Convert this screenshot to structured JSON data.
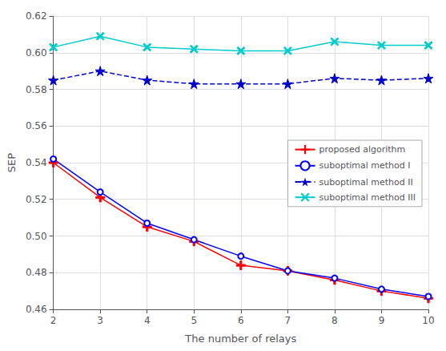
{
  "chart_data": {
    "type": "line",
    "xlabel": "The number of relays",
    "ylabel": "SEP",
    "x": [
      2,
      3,
      4,
      5,
      6,
      7,
      8,
      9,
      10
    ],
    "series": [
      {
        "name": "proposed algorithm",
        "color": "#ff0000",
        "marker": "plus",
        "line_style": "solid",
        "values": [
          0.54,
          0.521,
          0.505,
          0.497,
          0.484,
          0.481,
          0.476,
          0.47,
          0.466
        ]
      },
      {
        "name": "suboptimal method I",
        "color": "#0000ff",
        "marker": "circle",
        "line_style": "solid",
        "values": [
          0.542,
          0.524,
          0.507,
          0.498,
          0.489,
          0.481,
          0.477,
          0.471,
          0.467
        ]
      },
      {
        "name": "suboptimal method II",
        "color": "#0000cc",
        "marker": "star",
        "line_style": "dashed",
        "values": [
          0.585,
          0.59,
          0.585,
          0.583,
          0.583,
          0.583,
          0.586,
          0.585,
          0.586
        ]
      },
      {
        "name": "suboptimal method III",
        "color": "#00cccc",
        "marker": "x",
        "line_style": "solid",
        "values": [
          0.603,
          0.609,
          0.603,
          0.602,
          0.601,
          0.601,
          0.606,
          0.604,
          0.604
        ]
      }
    ],
    "xlim": [
      2,
      10
    ],
    "xticks": [
      2,
      3,
      4,
      5,
      6,
      7,
      8,
      9,
      10
    ],
    "ylim": [
      0.46,
      0.62
    ],
    "yticks": [
      0.46,
      0.48,
      {
        "value": 0.5,
        "label": "0.50"
      },
      0.52,
      0.54,
      0.56,
      0.58,
      {
        "value": 0.6,
        "label": "0.60"
      },
      0.62
    ],
    "grid": true,
    "legend": "right"
  }
}
